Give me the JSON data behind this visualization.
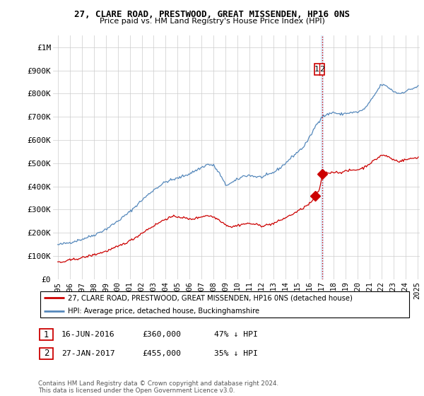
{
  "title": "27, CLARE ROAD, PRESTWOOD, GREAT MISSENDEN, HP16 0NS",
  "subtitle": "Price paid vs. HM Land Registry's House Price Index (HPI)",
  "legend_line1": "27, CLARE ROAD, PRESTWOOD, GREAT MISSENDEN, HP16 0NS (detached house)",
  "legend_line2": "HPI: Average price, detached house, Buckinghamshire",
  "footnote": "Contains HM Land Registry data © Crown copyright and database right 2024.\nThis data is licensed under the Open Government Licence v3.0.",
  "annotation1_date": "16-JUN-2016",
  "annotation1_price": "£360,000",
  "annotation1_hpi": "47% ↓ HPI",
  "annotation2_date": "27-JAN-2017",
  "annotation2_price": "£455,000",
  "annotation2_hpi": "35% ↓ HPI",
  "red_color": "#cc0000",
  "blue_color": "#5588bb",
  "vline_color": "#cc0000",
  "annotation_box_color": "#cc0000",
  "ylim": [
    0,
    1050000
  ],
  "yticks": [
    0,
    100000,
    200000,
    300000,
    400000,
    500000,
    600000,
    700000,
    800000,
    900000,
    1000000
  ],
  "ytick_labels": [
    "£0",
    "£100K",
    "£200K",
    "£300K",
    "£400K",
    "£500K",
    "£600K",
    "£700K",
    "£800K",
    "£900K",
    "£1M"
  ],
  "xlim": [
    1994.6,
    2025.2
  ],
  "xticks": [
    1995,
    1996,
    1997,
    1998,
    1999,
    2000,
    2001,
    2002,
    2003,
    2004,
    2005,
    2006,
    2007,
    2008,
    2009,
    2010,
    2011,
    2012,
    2013,
    2014,
    2015,
    2016,
    2017,
    2018,
    2019,
    2020,
    2021,
    2022,
    2023,
    2024,
    2025
  ],
  "sale1_x": 2016.46,
  "sale1_y": 360000,
  "sale2_x": 2017.07,
  "sale2_y": 455000,
  "vline_x": 2017.07
}
